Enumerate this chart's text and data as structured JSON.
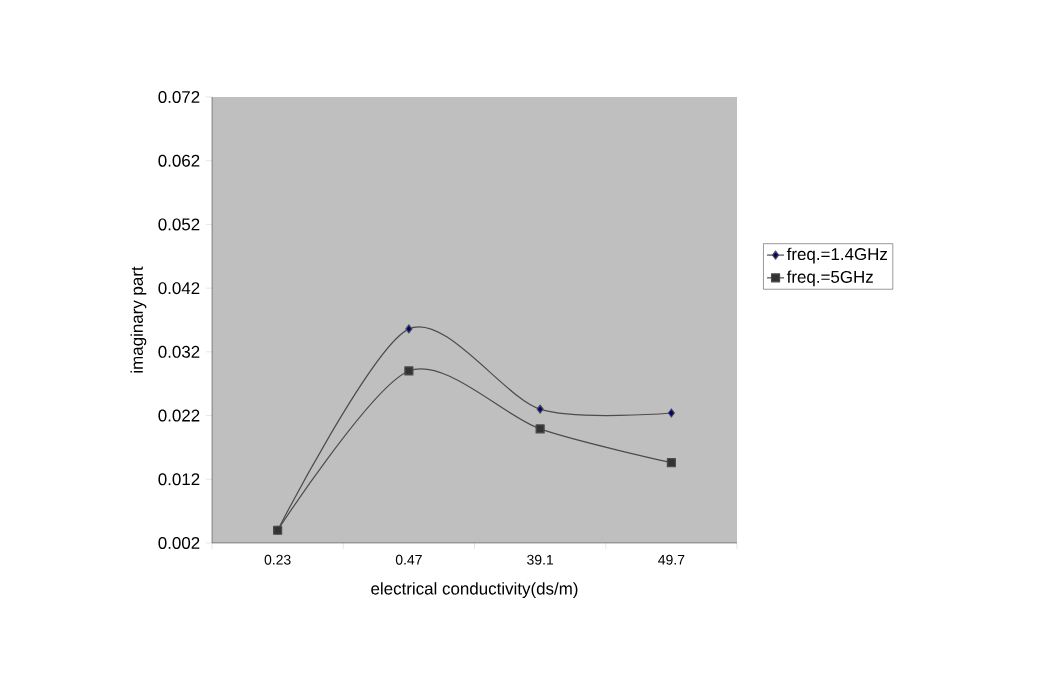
{
  "chart_data": {
    "type": "line",
    "xlabel": "electrical conductivity(ds/m)",
    "ylabel": "imaginary part",
    "categories": [
      "0.23",
      "0.47",
      "39.1",
      "49.7"
    ],
    "series": [
      {
        "name": "freq.=1.4GHz",
        "color": "#000080",
        "marker": "diamond",
        "values": [
          0.004,
          0.0356,
          0.023,
          0.0224
        ]
      },
      {
        "name": "freq.=5GHz",
        "color": "#333333",
        "marker": "square",
        "values": [
          0.004,
          0.029,
          0.0199,
          0.0146
        ]
      }
    ],
    "ylim": [
      0.002,
      0.072
    ],
    "yticks": [
      0.002,
      0.012,
      0.022,
      0.032,
      0.042,
      0.052,
      0.062,
      0.072
    ],
    "grid": false,
    "legend": "right",
    "line_style": "solid"
  }
}
